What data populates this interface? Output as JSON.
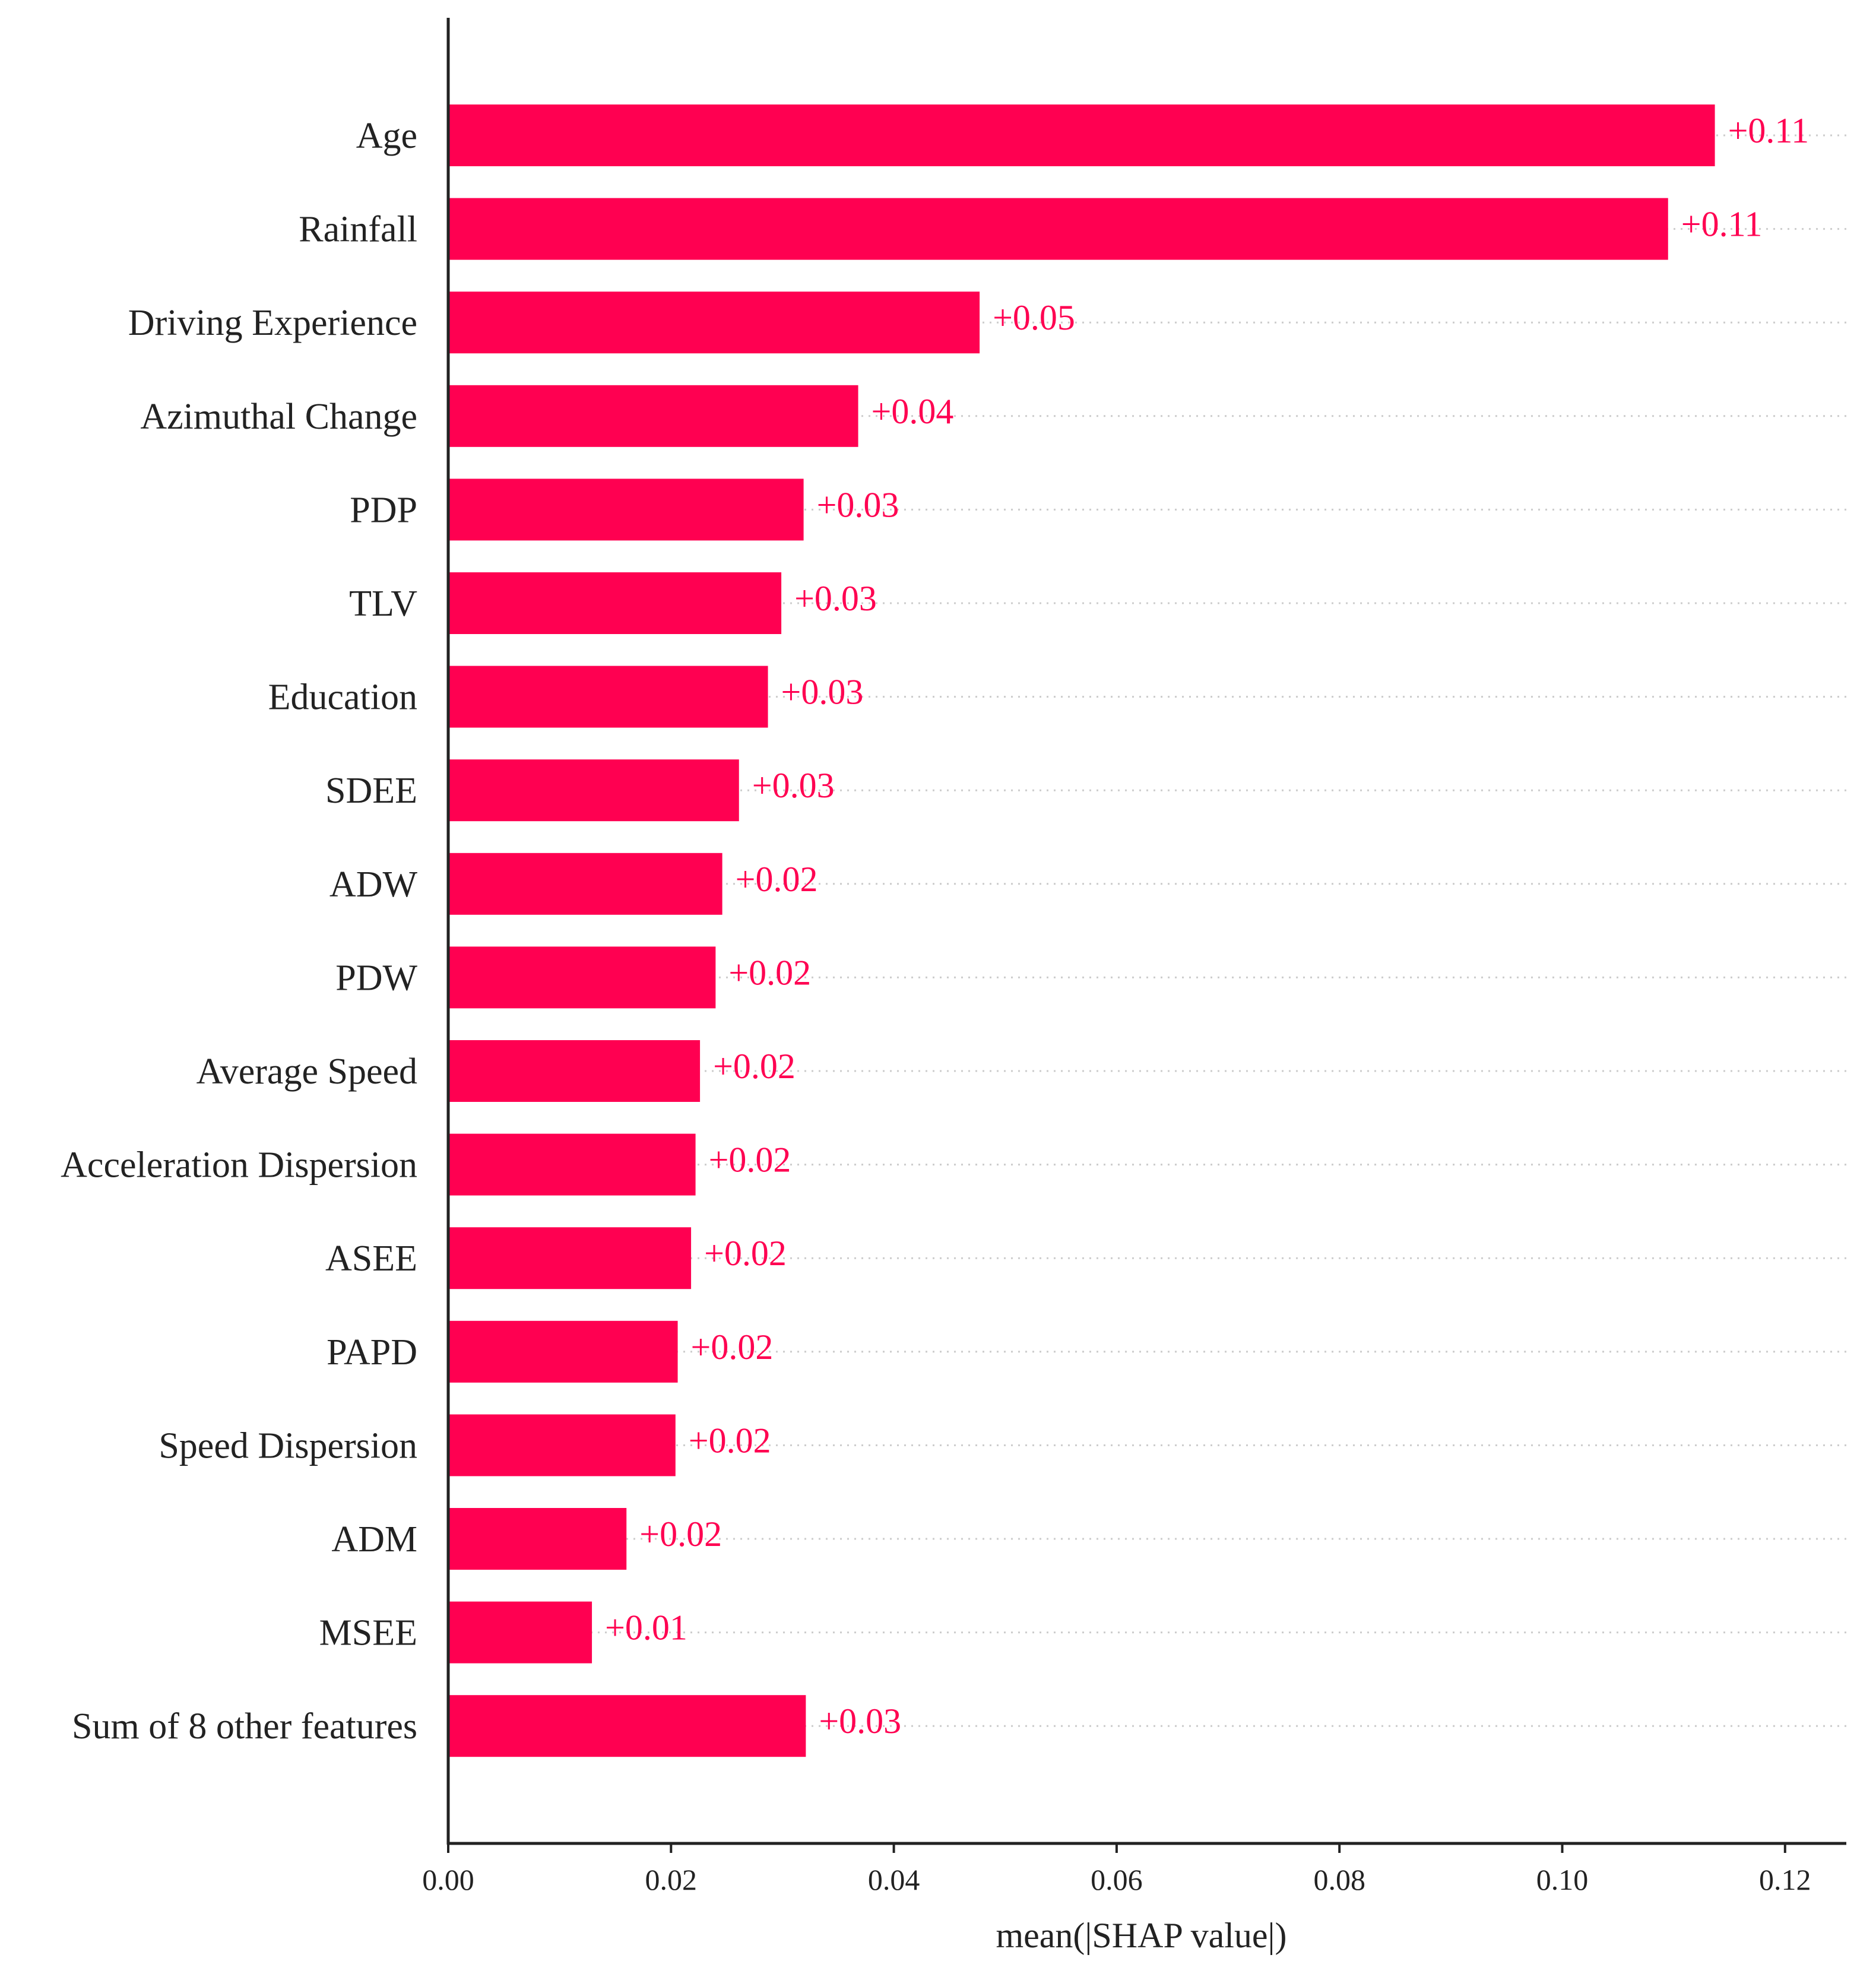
{
  "colors": {
    "bar": "#ff0051",
    "axis": "#222222",
    "grid": "#cccccc"
  },
  "chart_data": {
    "type": "bar",
    "orientation": "horizontal",
    "categories": [
      "Age",
      "Rainfall",
      "Driving Experience",
      "Azimuthal Change",
      "PDP",
      "TLV",
      "Education",
      "SDEE",
      "ADW",
      "PDW",
      "Average Speed",
      "Acceleration Dispersion",
      "ASEE",
      "PAPD",
      "Speed Dispersion",
      "ADM",
      "MSEE",
      "Sum of 8 other features"
    ],
    "values": [
      0.1137,
      0.1095,
      0.0477,
      0.0368,
      0.0319,
      0.0299,
      0.0287,
      0.0261,
      0.0246,
      0.024,
      0.0226,
      0.0222,
      0.0218,
      0.0206,
      0.0204,
      0.016,
      0.0129,
      0.0321
    ],
    "value_labels": [
      "+0.11",
      "+0.11",
      "+0.05",
      "+0.04",
      "+0.03",
      "+0.03",
      "+0.03",
      "+0.03",
      "+0.02",
      "+0.02",
      "+0.02",
      "+0.02",
      "+0.02",
      "+0.02",
      "+0.02",
      "+0.02",
      "+0.01",
      "+0.03"
    ],
    "xlabel": "mean(|SHAP value|)",
    "ylabel": "",
    "title": "",
    "xlim": [
      0,
      0.1255
    ],
    "xticks": [
      0,
      0.02,
      0.04,
      0.06,
      0.08,
      0.1,
      0.12
    ],
    "xtick_labels": [
      "0.00",
      "0.02",
      "0.04",
      "0.06",
      "0.08",
      "0.10",
      "0.12"
    ],
    "grid": "dotted row guides",
    "legend": "none"
  }
}
